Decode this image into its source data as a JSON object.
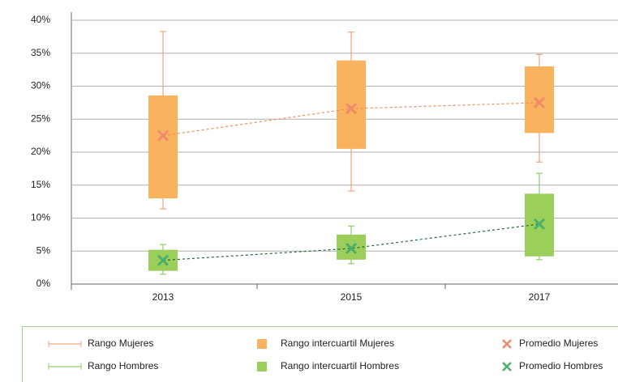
{
  "chart_data": {
    "type": "box",
    "categories": [
      "2013",
      "2015",
      "2017"
    ],
    "ylim": [
      0,
      40
    ],
    "yticks": [
      {
        "value": 0,
        "label": "0%"
      },
      {
        "value": 5,
        "label": "5%"
      },
      {
        "value": 10,
        "label": "10%"
      },
      {
        "value": 15,
        "label": "15%"
      },
      {
        "value": 20,
        "label": "20%"
      },
      {
        "value": 25,
        "label": "25%"
      },
      {
        "value": 30,
        "label": "30%"
      },
      {
        "value": 35,
        "label": "35%"
      },
      {
        "value": 40,
        "label": "40%"
      }
    ],
    "grid": true,
    "series": [
      {
        "range_name": "Rango Mujeres",
        "box_name": "Rango intercuartil Mujeres",
        "mean_name": "Promedio Mujeres",
        "range_color": "#f3a27e",
        "box_color": "#f9b25e",
        "mean_color": "#f08a6a",
        "trend_color": "#ef8a5a",
        "min": [
          11.4,
          14.1,
          18.5
        ],
        "q1": [
          13.0,
          20.5,
          22.9
        ],
        "q3": [
          28.6,
          33.9,
          33.0
        ],
        "max": [
          38.3,
          38.2,
          34.8
        ],
        "mean": [
          22.5,
          26.6,
          27.5
        ]
      },
      {
        "range_name": "Rango Hombres",
        "box_name": "Rango intercuartil Hombres",
        "mean_name": "Promedio Hombres",
        "range_color": "#8ccf6b",
        "box_color": "#9ccf5a",
        "mean_color": "#4cb06c",
        "trend_color": "#1e6b3a",
        "min": [
          1.5,
          3.1,
          3.7
        ],
        "q1": [
          2.0,
          3.7,
          4.2
        ],
        "q3": [
          5.2,
          7.5,
          13.7
        ],
        "max": [
          6.0,
          8.8,
          16.8
        ],
        "mean": [
          3.6,
          5.4,
          9.1
        ]
      }
    ]
  }
}
